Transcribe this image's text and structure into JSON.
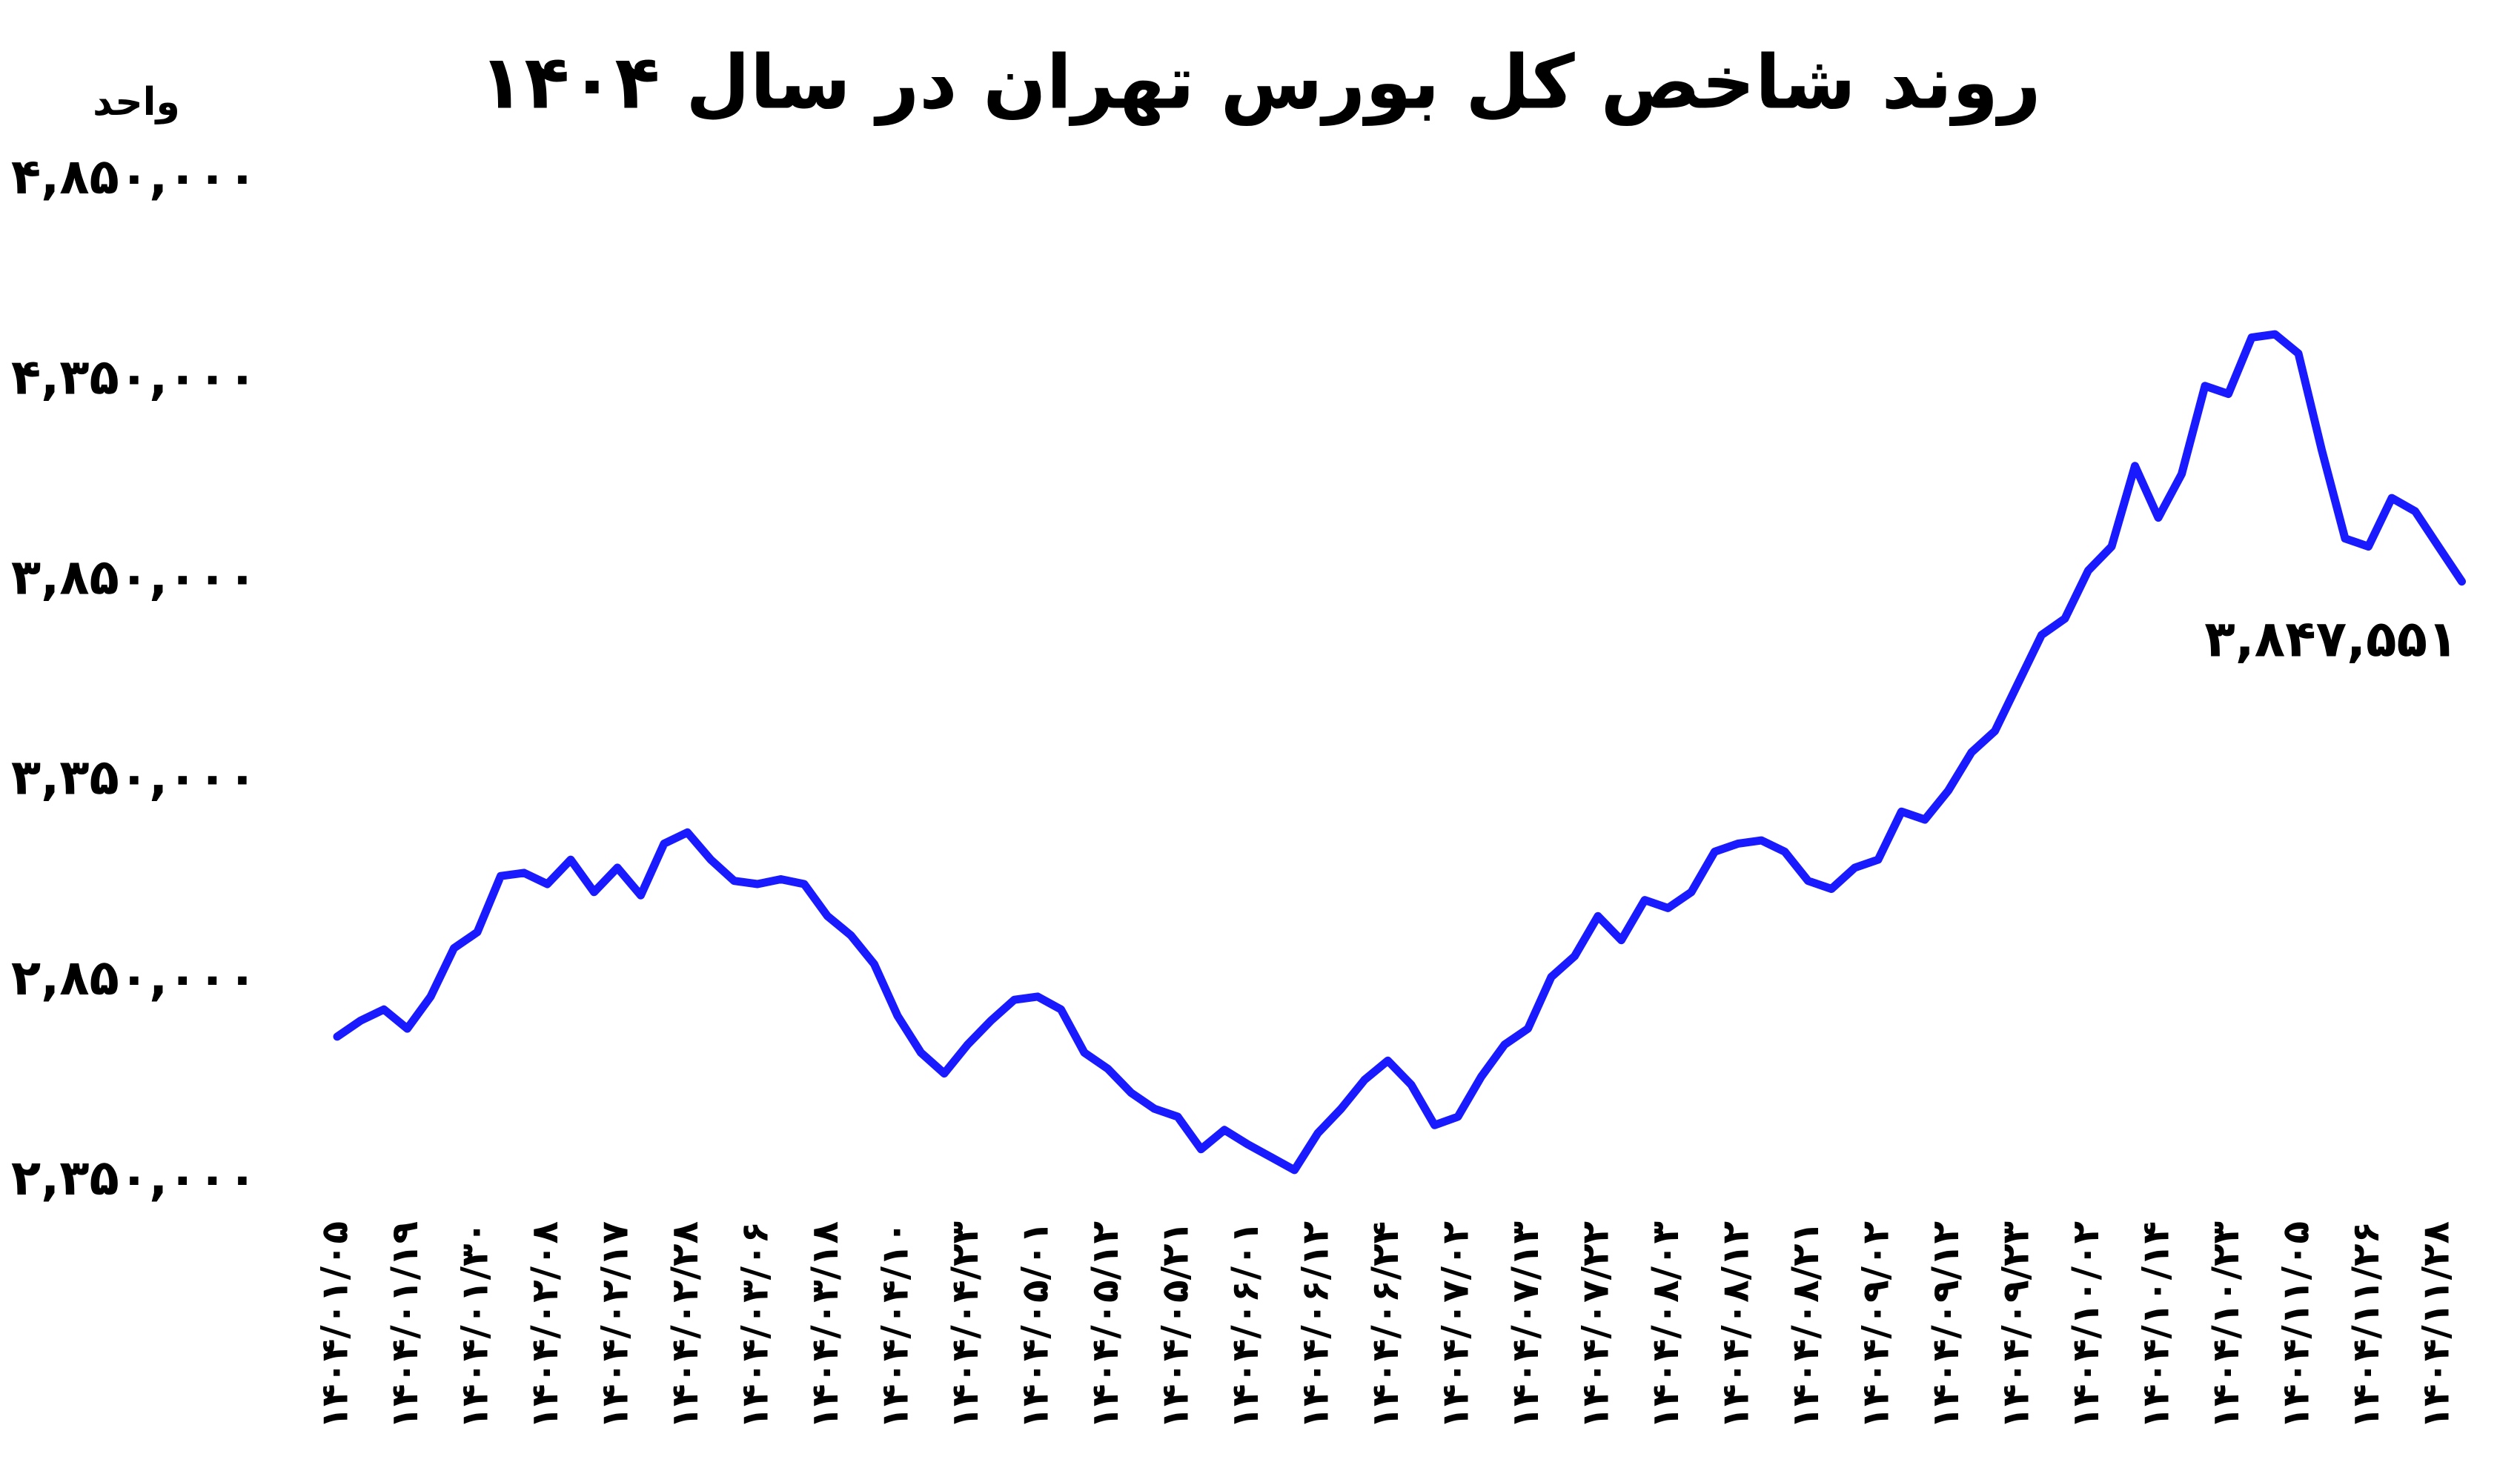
{
  "chart_data": {
    "type": "line",
    "title": "روند شاخص کل بورس تهران در سال ۱۴۰۴",
    "y_label": "واحد",
    "categories": [
      "۱۴۰۴/۰۱/۰۵",
      null,
      null,
      "۱۴۰۴/۰۱/۱۹",
      null,
      null,
      "۱۴۰۴/۰۱/۳۰",
      null,
      null,
      "۱۴۰۴/۰۲/۰۸",
      null,
      null,
      "۱۴۰۴/۰۲/۱۷",
      null,
      null,
      "۱۴۰۴/۰۲/۲۸",
      null,
      null,
      "۱۴۰۴/۰۳/۰۶",
      null,
      null,
      "۱۴۰۴/۰۳/۱۸",
      null,
      null,
      "۱۴۰۴/۰۴/۱۰",
      null,
      null,
      "۱۴۰۴/۰۴/۲۳",
      null,
      null,
      "۱۴۰۴/۰۵/۰۱",
      null,
      null,
      "۱۴۰۴/۰۵/۱۲",
      null,
      null,
      "۱۴۰۴/۰۵/۲۱",
      null,
      null,
      "۱۴۰۴/۰۶/۰۱",
      null,
      null,
      "۱۴۰۴/۰۶/۱۲",
      null,
      null,
      "۱۴۰۴/۰۶/۲۴",
      null,
      null,
      "۱۴۰۴/۰۷/۰۲",
      null,
      null,
      "۱۴۰۴/۰۷/۱۳",
      null,
      null,
      "۱۴۰۴/۰۷/۲۲",
      null,
      null,
      "۱۴۰۴/۰۸/۰۳",
      null,
      null,
      "۱۴۰۴/۰۸/۱۲",
      null,
      null,
      "۱۴۰۴/۰۸/۲۱",
      null,
      null,
      "۱۴۰۴/۰۹/۰۲",
      null,
      null,
      "۱۴۰۴/۰۹/۱۲",
      null,
      null,
      "۱۴۰۴/۰۹/۲۳",
      null,
      null,
      "۱۴۰۴/۱۰/۰۲",
      null,
      null,
      "۱۴۰۴/۱۰/۱۴",
      null,
      null,
      "۱۴۰۴/۱۰/۲۳",
      null,
      null,
      "۱۴۰۴/۱۱/۰۵",
      null,
      null,
      "۱۴۰۴/۱۱/۲۶",
      null,
      null,
      "۱۴۰۴/۱۱/۲۸",
      null
    ],
    "series": [
      {
        "color": "#1a1aff",
        "values": [
          2711000,
          2751000,
          2779000,
          2731000,
          2811000,
          2932000,
          2972000,
          3112000,
          3120000,
          3092000,
          3153000,
          3072000,
          3133000,
          3064000,
          3193000,
          3221000,
          3153000,
          3100000,
          3092000,
          3104000,
          3092000,
          3012000,
          2964000,
          2892000,
          2763000,
          2671000,
          2619000,
          2691000,
          2751000,
          2803000,
          2811000,
          2779000,
          2671000,
          2631000,
          2571000,
          2531000,
          2511000,
          2430000,
          2478000,
          2442000,
          2410000,
          2378000,
          2470000,
          2531000,
          2603000,
          2651000,
          2591000,
          2490000,
          2511000,
          2611000,
          2691000,
          2731000,
          2860000,
          2912000,
          3012000,
          2952000,
          3052000,
          3032000,
          3072000,
          3173000,
          3193000,
          3201000,
          3173000,
          3100000,
          3080000,
          3133000,
          3153000,
          3273000,
          3253000,
          3325000,
          3421000,
          3474000,
          3594000,
          3714000,
          3755000,
          3875000,
          3935000,
          4136000,
          4007000,
          4116000,
          4336000,
          4316000,
          4457000,
          4465000,
          4417000,
          4176000,
          3955000,
          3935000,
          4056000,
          4023000,
          3935000,
          3847551
        ],
        "value_labels": [
          null,
          null,
          null,
          null,
          null,
          null,
          null,
          null,
          null,
          null,
          null,
          null,
          null,
          null,
          null,
          null,
          null,
          null,
          null,
          null,
          null,
          null,
          null,
          null,
          null,
          null,
          null,
          null,
          null,
          null,
          null,
          null,
          null,
          null,
          null,
          null,
          null,
          null,
          null,
          null,
          null,
          null,
          null,
          null,
          null,
          null,
          null,
          null,
          null,
          null,
          null,
          null,
          null,
          null,
          null,
          null,
          null,
          null,
          null,
          null,
          null,
          null,
          null,
          null,
          null,
          null,
          null,
          null,
          null,
          null,
          null,
          null,
          null,
          null,
          null,
          null,
          null,
          null,
          null,
          null,
          null,
          null,
          null,
          null,
          null,
          null,
          null,
          null,
          null,
          null,
          null,
          "۳,۸۴۷,۵۵۱"
        ]
      }
    ],
    "ylim": [
      2350000,
      4850000
    ],
    "yticks": [
      {
        "value": 2350000,
        "label": "۲,۳۵۰,۰۰۰"
      },
      {
        "value": 2850000,
        "label": "۲,۸۵۰,۰۰۰"
      },
      {
        "value": 3350000,
        "label": "۳,۳۵۰,۰۰۰"
      },
      {
        "value": 3850000,
        "label": "۳,۸۵۰,۰۰۰"
      },
      {
        "value": 4350000,
        "label": "۴,۳۵۰,۰۰۰"
      },
      {
        "value": 4850000,
        "label": "۴,۸۵۰,۰۰۰"
      }
    ],
    "grid": false
  }
}
